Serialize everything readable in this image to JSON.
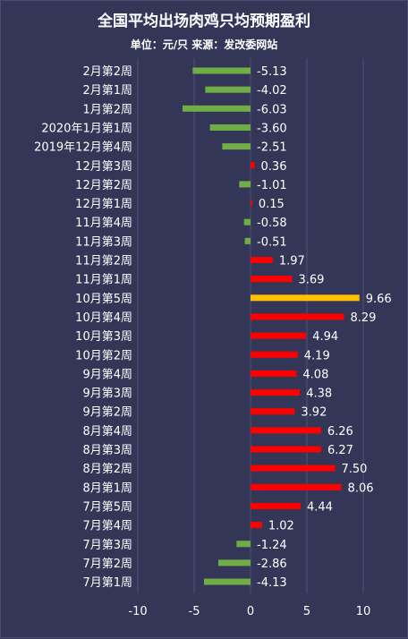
{
  "chart_data": {
    "type": "bar",
    "orientation": "horizontal",
    "title": "全国平均出场肉鸡只均预期盈利",
    "subtitle": "单位：元/只 来源：发改委网站",
    "categories": [
      "2月第2周",
      "2月第1周",
      "1月第2周",
      "2020年1月第1周",
      "2019年12月第4周",
      "12月第3周",
      "12月第2周",
      "12月第1周",
      "11月第4周",
      "11月第3周",
      "11月第2周",
      "11月第1周",
      "10月第5周",
      "10月第4周",
      "10月第3周",
      "10月第2周",
      "9月第4周",
      "9月第3周",
      "9月第2周",
      "8月第4周",
      "8月第3周",
      "8月第2周",
      "8月第1周",
      "7月第5周",
      "7月第4周",
      "7月第3周",
      "7月第2周",
      "7月第1周"
    ],
    "values": [
      -5.13,
      -4.02,
      -6.03,
      -3.6,
      -2.51,
      0.36,
      -1.01,
      0.15,
      -0.58,
      -0.51,
      1.97,
      3.69,
      9.66,
      8.29,
      4.94,
      4.19,
      4.08,
      4.38,
      3.92,
      6.26,
      6.27,
      7.5,
      8.06,
      4.44,
      1.02,
      -1.24,
      -2.86,
      -4.13
    ],
    "value_labels": [
      "-5.13",
      "-4.02",
      "-6.03",
      "-3.60",
      "-2.51",
      "0.36",
      "-1.01",
      "0.15",
      "-0.58",
      "-0.51",
      "1.97",
      "3.69",
      "9.66",
      "8.29",
      "4.94",
      "4.19",
      "4.08",
      "4.38",
      "3.92",
      "6.26",
      "6.27",
      "7.50",
      "8.06",
      "4.44",
      "1.02",
      "-1.24",
      "-2.86",
      "-4.13"
    ],
    "highlight_category": "10月第5周",
    "xlim": [
      -10,
      10
    ],
    "xticks": [
      -10,
      -5,
      0,
      5,
      10
    ],
    "grid": true,
    "colors": {
      "positive": "#ff0000",
      "negative": "#70ad47",
      "highlight": "#ffc000",
      "grid": "#4e5175",
      "background": "#343658"
    }
  }
}
